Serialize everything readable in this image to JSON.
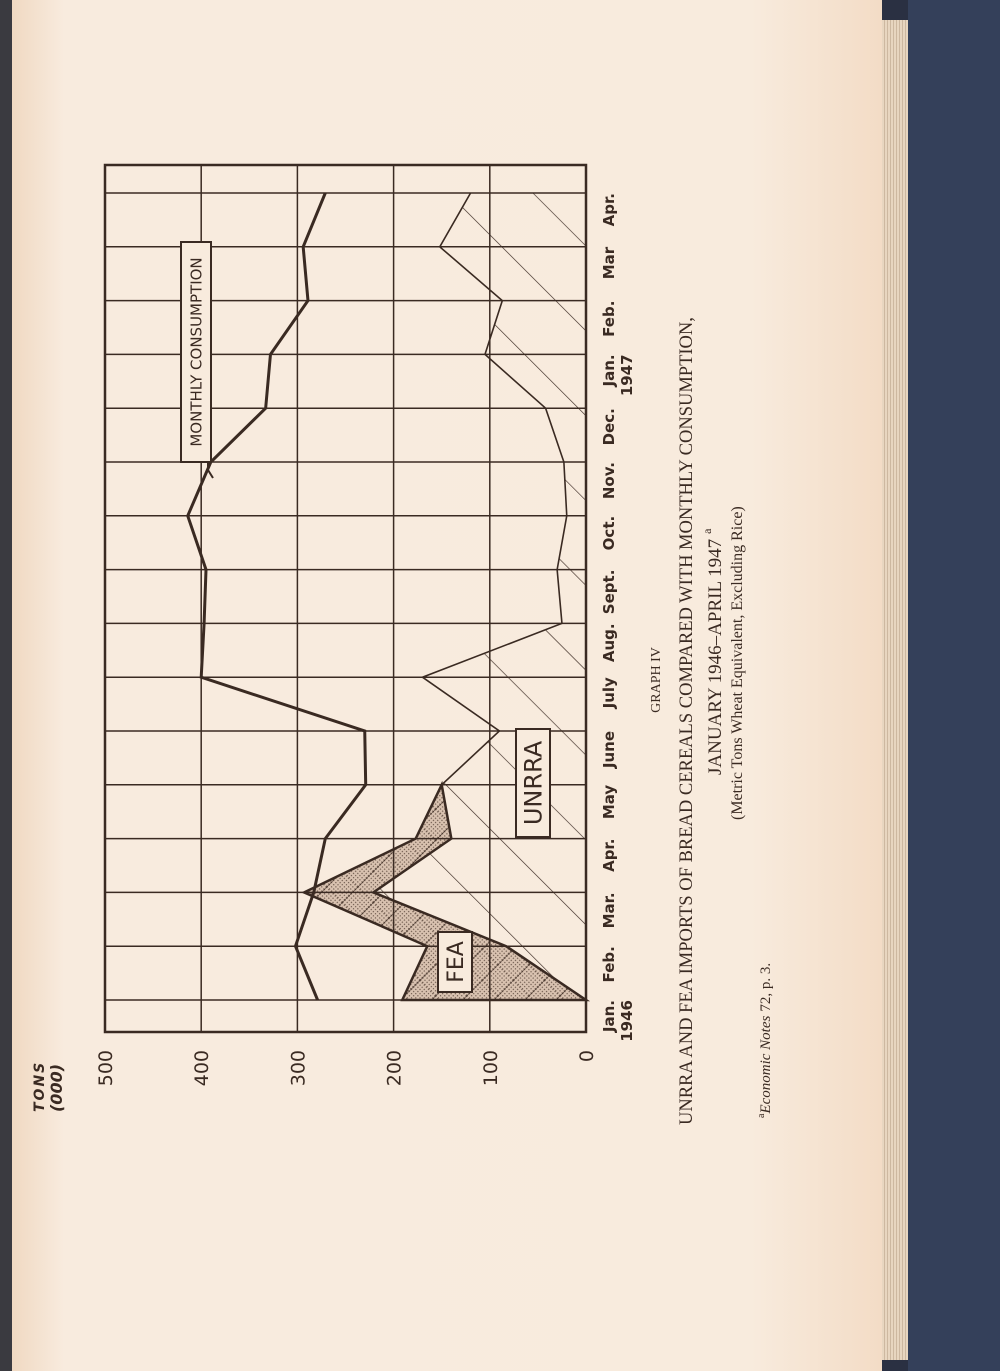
{
  "chart_data": {
    "type": "area",
    "orientation": "rotated 90° counter-clockwise on page",
    "graph_label": "GRAPH IV",
    "title": "UNRRA AND FEA IMPORTS OF BREAD CEREALS COMPARED WITH MONTHLY CONSUMPTION,",
    "title_line2": "JANUARY 1946–APRIL 1947",
    "title_footnote_mark": "a",
    "subtitle": "(Metric Tons Wheat Equivalent, Excluding Rice)",
    "ylabel": "TONS",
    "ylabel_unit": "(000)",
    "ylim": [
      0,
      500
    ],
    "yticks": [
      "0",
      "100",
      "200",
      "300",
      "400",
      "500"
    ],
    "grid": true,
    "categories": [
      "Jan.",
      "Feb.",
      "Mar.",
      "Apr.",
      "May",
      "June",
      "July",
      "Aug.",
      "Sept.",
      "Oct.",
      "Nov.",
      "Dec.",
      "Jan.",
      "Feb.",
      "Mar",
      "Apr."
    ],
    "year_labels": [
      {
        "index": 0,
        "label": "1946"
      },
      {
        "index": 12,
        "label": "1947"
      }
    ],
    "series": [
      {
        "name": "MONTHLY CONSUMPTION",
        "style": "line",
        "values": [
          279,
          302,
          283,
          271,
          229,
          230,
          400,
          397,
          395,
          414,
          390,
          333,
          328,
          289,
          294,
          271
        ]
      },
      {
        "name": "UNRRA",
        "style": "hatched area",
        "values": [
          0,
          83,
          221,
          140,
          150,
          90,
          170,
          25,
          30,
          20,
          23,
          42,
          105,
          87,
          152,
          120
        ]
      },
      {
        "name": "FEA",
        "style": "stippled area stacked on UNRRA",
        "values": [
          191,
          82,
          72,
          37,
          0,
          null,
          null,
          null,
          null,
          null,
          null,
          null,
          null,
          null,
          null,
          null
        ]
      }
    ]
  },
  "footnote": {
    "mark": "a",
    "source": "Economic Notes",
    "detail": "72, p. 3."
  },
  "colors": {
    "ink": "#3a2a22",
    "paper": "#f8ebdd",
    "cover": "#34405a"
  }
}
